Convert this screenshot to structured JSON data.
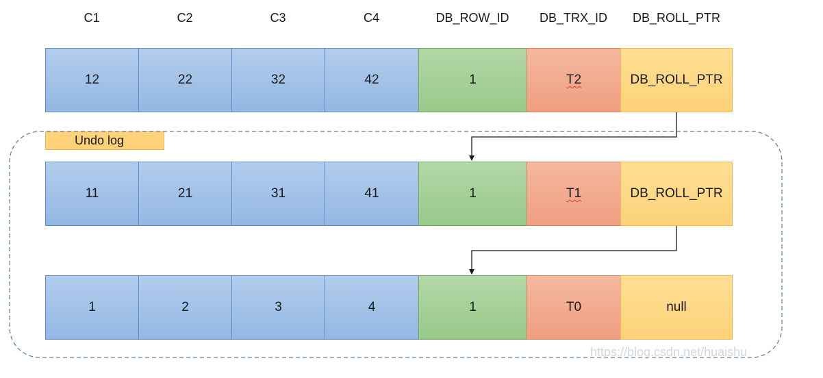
{
  "headers": [
    "C1",
    "C2",
    "C3",
    "C4",
    "DB_ROW_ID",
    "DB_TRX_ID",
    "DB_ROLL_PTR"
  ],
  "rows": [
    {
      "c1": "12",
      "c2": "22",
      "c3": "32",
      "c4": "42",
      "row_id": "1",
      "trx_id": "T2",
      "roll_ptr": "DB_ROLL_PTR"
    },
    {
      "c1": "11",
      "c2": "21",
      "c3": "31",
      "c4": "41",
      "row_id": "1",
      "trx_id": "T1",
      "roll_ptr": "DB_ROLL_PTR"
    },
    {
      "c1": "1",
      "c2": "2",
      "c3": "3",
      "c4": "4",
      "row_id": "1",
      "trx_id": "T0",
      "roll_ptr": "null"
    }
  ],
  "undo_log_label": "Undo log",
  "watermark": "https://blog.csdn.net/huaishu",
  "colors": {
    "data_columns": "#9fc0e8",
    "row_id": "#a6d096",
    "trx_id": "#f2a98c",
    "roll_ptr": "#fdd884",
    "undo_boundary": "#5b84b1"
  }
}
